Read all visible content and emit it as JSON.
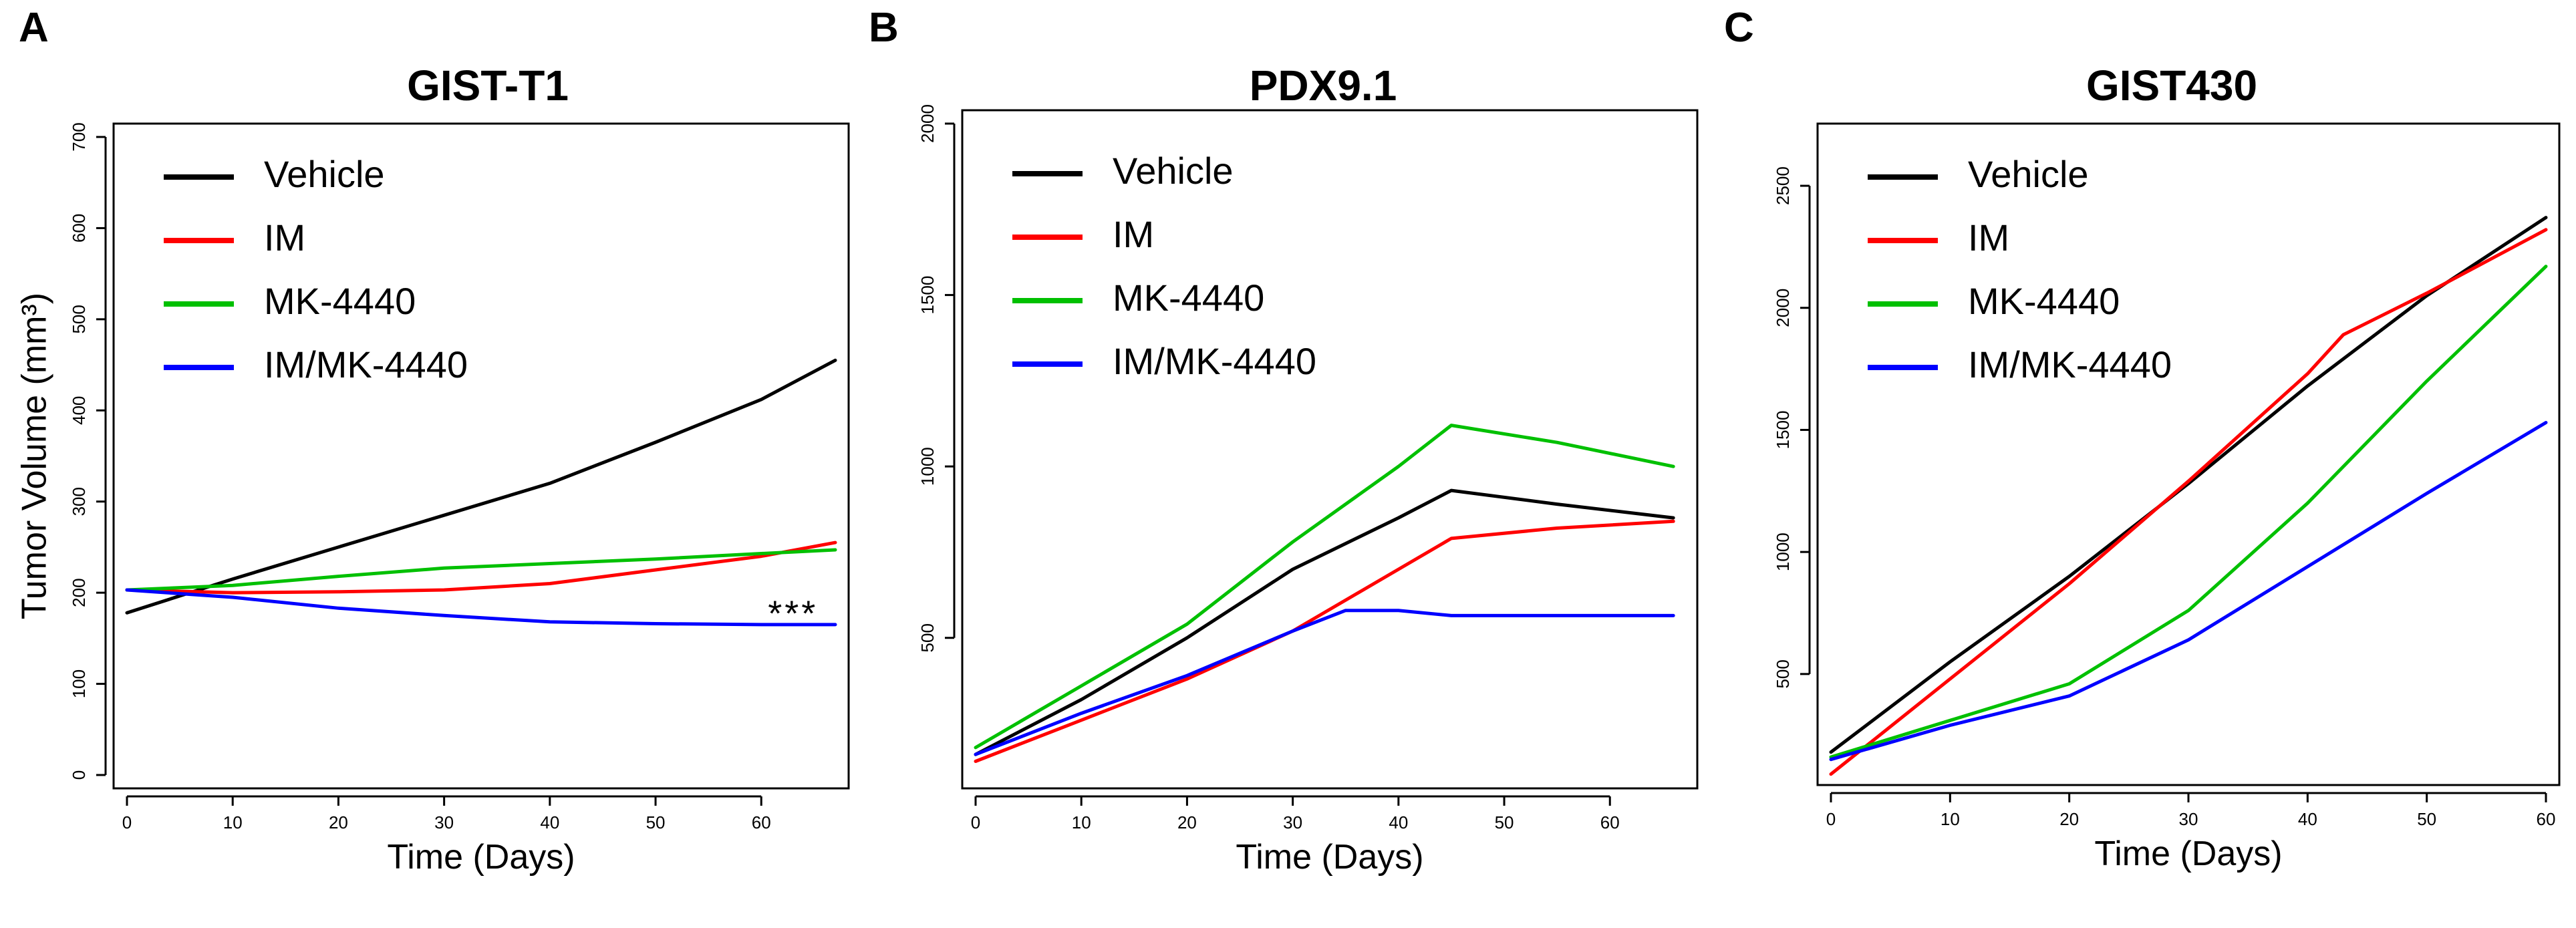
{
  "chart_data": [
    {
      "panel": "A",
      "type": "line",
      "title": "GIST-T1",
      "xlabel": "Time (Days)",
      "ylabel": "Tumor Volume (mm³)",
      "xlim": [
        0,
        67
      ],
      "ylim": [
        0,
        700
      ],
      "xticks": [
        0,
        10,
        20,
        30,
        40,
        50,
        60
      ],
      "yticks": [
        0,
        100,
        200,
        300,
        400,
        500,
        600,
        700
      ],
      "legend_position": "top-left",
      "annotations": [
        {
          "text": "***",
          "x": 63,
          "y": 180
        }
      ],
      "series": [
        {
          "name": "Vehicle",
          "color": "#000000",
          "x": [
            0,
            10,
            20,
            30,
            40,
            50,
            60,
            67
          ],
          "y": [
            178,
            215,
            250,
            285,
            320,
            365,
            412,
            455
          ]
        },
        {
          "name": "IM",
          "color": "#ff0000",
          "x": [
            0,
            10,
            20,
            30,
            40,
            50,
            60,
            67
          ],
          "y": [
            203,
            200,
            201,
            203,
            210,
            225,
            240,
            255
          ]
        },
        {
          "name": "MK-4440",
          "color": "#00c000",
          "x": [
            0,
            10,
            20,
            30,
            40,
            50,
            60,
            67
          ],
          "y": [
            203,
            208,
            218,
            227,
            232,
            237,
            243,
            247
          ]
        },
        {
          "name": "IM/MK-4440",
          "color": "#0000ff",
          "x": [
            0,
            10,
            20,
            30,
            40,
            50,
            60,
            67
          ],
          "y": [
            203,
            195,
            183,
            175,
            168,
            166,
            165,
            165
          ]
        }
      ]
    },
    {
      "panel": "B",
      "type": "line",
      "title": "PDX9.1",
      "xlabel": "Time (Days)",
      "ylabel": "",
      "xlim": [
        0,
        67
      ],
      "ylim": [
        100,
        2000
      ],
      "xticks": [
        0,
        10,
        20,
        30,
        40,
        50,
        60
      ],
      "yticks": [
        500,
        1000,
        1500,
        2000
      ],
      "legend_position": "top-left",
      "annotations": [],
      "series": [
        {
          "name": "Vehicle",
          "color": "#000000",
          "x": [
            0,
            10,
            20,
            30,
            40,
            45,
            55,
            66
          ],
          "y": [
            160,
            320,
            500,
            700,
            850,
            930,
            890,
            850
          ]
        },
        {
          "name": "IM",
          "color": "#ff0000",
          "x": [
            0,
            10,
            20,
            30,
            40,
            45,
            55,
            66
          ],
          "y": [
            140,
            260,
            380,
            520,
            700,
            790,
            820,
            840
          ]
        },
        {
          "name": "MK-4440",
          "color": "#00c000",
          "x": [
            0,
            10,
            20,
            30,
            40,
            45,
            55,
            66
          ],
          "y": [
            180,
            360,
            540,
            780,
            1000,
            1120,
            1070,
            1000
          ]
        },
        {
          "name": "IM/MK-4440",
          "color": "#0000ff",
          "x": [
            0,
            10,
            20,
            30,
            35,
            40,
            45,
            66
          ],
          "y": [
            160,
            280,
            390,
            520,
            580,
            580,
            565,
            565
          ]
        }
      ]
    },
    {
      "panel": "C",
      "type": "line",
      "title": "GIST430",
      "xlabel": "Time (Days)",
      "ylabel": "",
      "xlim": [
        0,
        60
      ],
      "ylim": [
        100,
        2700
      ],
      "xticks": [
        0,
        10,
        20,
        30,
        40,
        50,
        60
      ],
      "yticks": [
        500,
        1000,
        1500,
        2000,
        2500
      ],
      "legend_position": "top-left",
      "annotations": [],
      "series": [
        {
          "name": "Vehicle",
          "color": "#000000",
          "x": [
            0,
            10,
            20,
            30,
            40,
            50,
            60
          ],
          "y": [
            180,
            550,
            900,
            1280,
            1680,
            2050,
            2370
          ]
        },
        {
          "name": "IM",
          "color": "#ff0000",
          "x": [
            0,
            10,
            20,
            30,
            40,
            43,
            50,
            60
          ],
          "y": [
            90,
            480,
            870,
            1290,
            1730,
            1890,
            2060,
            2320
          ]
        },
        {
          "name": "MK-4440",
          "color": "#00c000",
          "x": [
            0,
            10,
            20,
            30,
            40,
            50,
            60
          ],
          "y": [
            160,
            310,
            460,
            760,
            1200,
            1700,
            2170
          ]
        },
        {
          "name": "IM/MK-4440",
          "color": "#0000ff",
          "x": [
            0,
            10,
            20,
            30,
            40,
            50,
            60
          ],
          "y": [
            150,
            290,
            410,
            640,
            940,
            1240,
            1530
          ]
        }
      ]
    }
  ]
}
